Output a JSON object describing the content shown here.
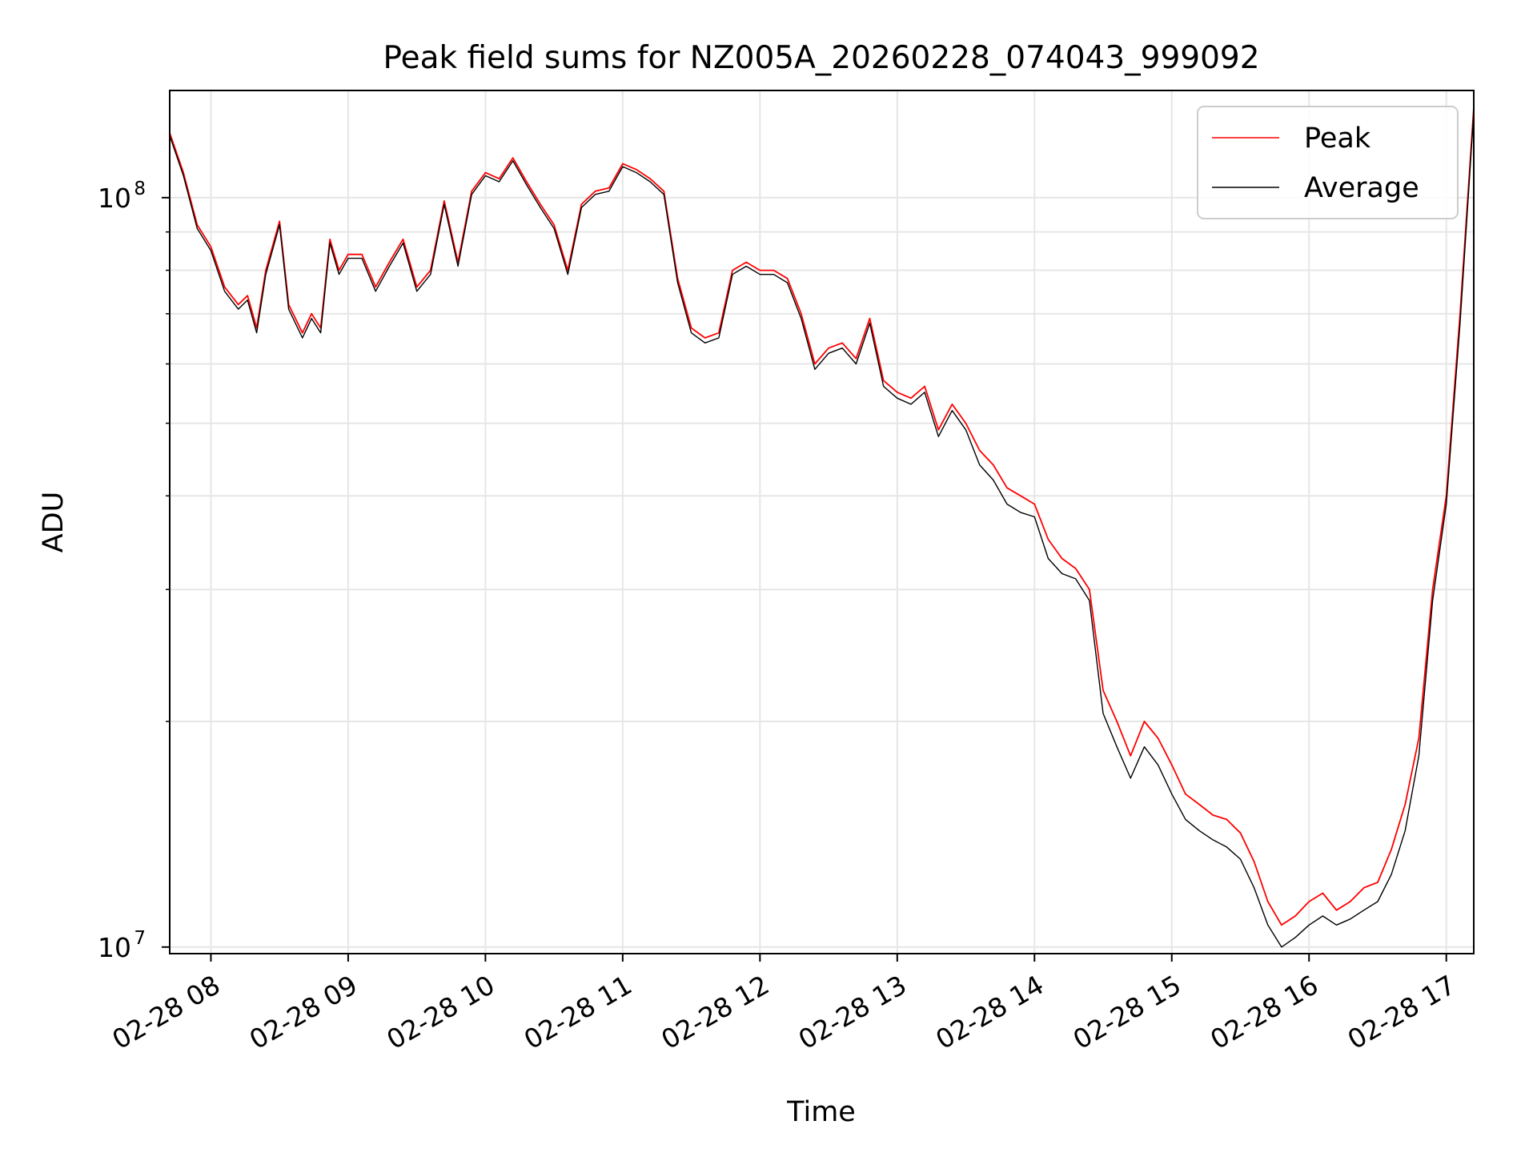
{
  "chart_data": {
    "type": "line",
    "title": "Peak field sums for NZ005A_20260228_074043_999092",
    "xlabel": "Time",
    "ylabel": "ADU",
    "y_scale": "log",
    "grid": true,
    "legend_placement": "top-right",
    "xlim": [
      "02-28 07:42",
      "02-28 17:12"
    ],
    "ylim": [
      9800000,
      139000000
    ],
    "x_ticks": [
      "02-28 08",
      "02-28 09",
      "02-28 10",
      "02-28 11",
      "02-28 12",
      "02-28 13",
      "02-28 14",
      "02-28 15",
      "02-28 16",
      "02-28 17"
    ],
    "y_ticks": [
      {
        "value": 10000000,
        "base": "10",
        "exp": "7"
      },
      {
        "value": 100000000,
        "base": "10",
        "exp": "8"
      }
    ],
    "series": [
      {
        "name": "Peak",
        "color": "#ff0000",
        "x": [
          "02-28 07:42",
          "02-28 07:48",
          "02-28 07:54",
          "02-28 08:00",
          "02-28 08:06",
          "02-28 08:12",
          "02-28 08:16",
          "02-28 08:20",
          "02-28 08:24",
          "02-28 08:30",
          "02-28 08:34",
          "02-28 08:40",
          "02-28 08:44",
          "02-28 08:48",
          "02-28 08:52",
          "02-28 08:56",
          "02-28 09:00",
          "02-28 09:06",
          "02-28 09:12",
          "02-28 09:18",
          "02-28 09:24",
          "02-28 09:30",
          "02-28 09:36",
          "02-28 09:42",
          "02-28 09:48",
          "02-28 09:54",
          "02-28 10:00",
          "02-28 10:06",
          "02-28 10:12",
          "02-28 10:18",
          "02-28 10:24",
          "02-28 10:30",
          "02-28 10:36",
          "02-28 10:42",
          "02-28 10:48",
          "02-28 10:54",
          "02-28 11:00",
          "02-28 11:06",
          "02-28 11:12",
          "02-28 11:18",
          "02-28 11:24",
          "02-28 11:30",
          "02-28 11:36",
          "02-28 11:42",
          "02-28 11:48",
          "02-28 11:54",
          "02-28 12:00",
          "02-28 12:06",
          "02-28 12:12",
          "02-28 12:18",
          "02-28 12:24",
          "02-28 12:30",
          "02-28 12:36",
          "02-28 12:42",
          "02-28 12:48",
          "02-28 12:54",
          "02-28 13:00",
          "02-28 13:06",
          "02-28 13:12",
          "02-28 13:18",
          "02-28 13:24",
          "02-28 13:30",
          "02-28 13:36",
          "02-28 13:42",
          "02-28 13:48",
          "02-28 13:54",
          "02-28 14:00",
          "02-28 14:06",
          "02-28 14:12",
          "02-28 14:18",
          "02-28 14:24",
          "02-28 14:30",
          "02-28 14:36",
          "02-28 14:42",
          "02-28 14:48",
          "02-28 14:54",
          "02-28 15:00",
          "02-28 15:06",
          "02-28 15:12",
          "02-28 15:18",
          "02-28 15:24",
          "02-28 15:30",
          "02-28 15:36",
          "02-28 15:42",
          "02-28 15:48",
          "02-28 15:54",
          "02-28 16:00",
          "02-28 16:06",
          "02-28 16:12",
          "02-28 16:18",
          "02-28 16:24",
          "02-28 16:30",
          "02-28 16:36",
          "02-28 16:42",
          "02-28 16:48",
          "02-28 16:54",
          "02-28 17:00",
          "02-28 17:06",
          "02-28 17:12"
        ],
        "values": [
          122000000,
          108000000,
          92000000,
          86000000,
          76000000,
          72000000,
          74000000,
          67000000,
          80000000,
          93000000,
          72000000,
          66000000,
          70000000,
          67000000,
          88000000,
          80000000,
          84000000,
          84000000,
          76000000,
          82000000,
          88000000,
          76000000,
          80000000,
          99000000,
          82000000,
          102000000,
          108000000,
          106000000,
          113000000,
          105000000,
          98000000,
          92000000,
          80000000,
          98000000,
          102000000,
          103000000,
          111000000,
          109000000,
          106000000,
          102000000,
          78000000,
          67000000,
          65000000,
          66000000,
          80000000,
          82000000,
          80000000,
          80000000,
          78000000,
          70000000,
          60000000,
          63000000,
          64000000,
          61000000,
          69000000,
          57000000,
          55000000,
          54000000,
          56000000,
          49000000,
          53000000,
          50000000,
          46000000,
          44000000,
          41000000,
          40000000,
          39000000,
          35000000,
          33000000,
          32000000,
          30000000,
          22000000,
          20000000,
          18000000,
          20000000,
          19000000,
          17500000,
          16000000,
          15500000,
          15000000,
          14800000,
          14200000,
          13000000,
          11500000,
          10700000,
          11000000,
          11500000,
          11800000,
          11200000,
          11500000,
          12000000,
          12200000,
          13500000,
          15500000,
          19000000,
          30000000,
          40000000,
          70000000,
          132000000
        ]
      },
      {
        "name": "Average",
        "color": "#000000",
        "x": [
          "02-28 07:42",
          "02-28 07:48",
          "02-28 07:54",
          "02-28 08:00",
          "02-28 08:06",
          "02-28 08:12",
          "02-28 08:16",
          "02-28 08:20",
          "02-28 08:24",
          "02-28 08:30",
          "02-28 08:34",
          "02-28 08:40",
          "02-28 08:44",
          "02-28 08:48",
          "02-28 08:52",
          "02-28 08:56",
          "02-28 09:00",
          "02-28 09:06",
          "02-28 09:12",
          "02-28 09:18",
          "02-28 09:24",
          "02-28 09:30",
          "02-28 09:36",
          "02-28 09:42",
          "02-28 09:48",
          "02-28 09:54",
          "02-28 10:00",
          "02-28 10:06",
          "02-28 10:12",
          "02-28 10:18",
          "02-28 10:24",
          "02-28 10:30",
          "02-28 10:36",
          "02-28 10:42",
          "02-28 10:48",
          "02-28 10:54",
          "02-28 11:00",
          "02-28 11:06",
          "02-28 11:12",
          "02-28 11:18",
          "02-28 11:24",
          "02-28 11:30",
          "02-28 11:36",
          "02-28 11:42",
          "02-28 11:48",
          "02-28 11:54",
          "02-28 12:00",
          "02-28 12:06",
          "02-28 12:12",
          "02-28 12:18",
          "02-28 12:24",
          "02-28 12:30",
          "02-28 12:36",
          "02-28 12:42",
          "02-28 12:48",
          "02-28 12:54",
          "02-28 13:00",
          "02-28 13:06",
          "02-28 13:12",
          "02-28 13:18",
          "02-28 13:24",
          "02-28 13:30",
          "02-28 13:36",
          "02-28 13:42",
          "02-28 13:48",
          "02-28 13:54",
          "02-28 14:00",
          "02-28 14:06",
          "02-28 14:12",
          "02-28 14:18",
          "02-28 14:24",
          "02-28 14:30",
          "02-28 14:36",
          "02-28 14:42",
          "02-28 14:48",
          "02-28 14:54",
          "02-28 15:00",
          "02-28 15:06",
          "02-28 15:12",
          "02-28 15:18",
          "02-28 15:24",
          "02-28 15:30",
          "02-28 15:36",
          "02-28 15:42",
          "02-28 15:48",
          "02-28 15:54",
          "02-28 16:00",
          "02-28 16:06",
          "02-28 16:12",
          "02-28 16:18",
          "02-28 16:24",
          "02-28 16:30",
          "02-28 16:36",
          "02-28 16:42",
          "02-28 16:48",
          "02-28 16:54",
          "02-28 17:00",
          "02-28 17:06",
          "02-28 17:12"
        ],
        "values": [
          121000000,
          107000000,
          91000000,
          85000000,
          75000000,
          71000000,
          73000000,
          66000000,
          79000000,
          92000000,
          71000000,
          65000000,
          69000000,
          66000000,
          87000000,
          79000000,
          83000000,
          83000000,
          75000000,
          81000000,
          87000000,
          75000000,
          79000000,
          98000000,
          81000000,
          101000000,
          107000000,
          105000000,
          112000000,
          104000000,
          97000000,
          91000000,
          79000000,
          97000000,
          101000000,
          102000000,
          110000000,
          108000000,
          105000000,
          101000000,
          77000000,
          66000000,
          64000000,
          65000000,
          79000000,
          81000000,
          79000000,
          79000000,
          77000000,
          69000000,
          59000000,
          62000000,
          63000000,
          60000000,
          68000000,
          56000000,
          54000000,
          53000000,
          55000000,
          48000000,
          52000000,
          49000000,
          44000000,
          42000000,
          39000000,
          38000000,
          37500000,
          33000000,
          31500000,
          31000000,
          29000000,
          20500000,
          18500000,
          16800000,
          18500000,
          17500000,
          16000000,
          14800000,
          14300000,
          13900000,
          13600000,
          13100000,
          12000000,
          10700000,
          10000000,
          10300000,
          10700000,
          11000000,
          10700000,
          10900000,
          11200000,
          11500000,
          12500000,
          14300000,
          18000000,
          29000000,
          39000000,
          68000000,
          130000000
        ]
      }
    ]
  }
}
